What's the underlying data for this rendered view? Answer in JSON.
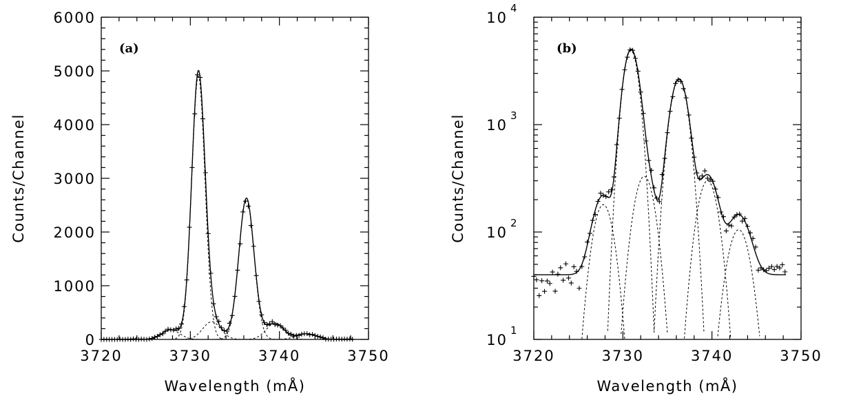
{
  "chart_data": [
    {
      "type": "line",
      "panel_label": "(a)",
      "xlabel": "Wavelength (mÅ)",
      "ylabel": "Counts/Channel",
      "xlim": [
        3720,
        3750
      ],
      "ylim": [
        0,
        6000
      ],
      "y_scale": "linear",
      "x_ticks": [
        "3720",
        "3730",
        "3740",
        "3750"
      ],
      "y_ticks": [
        "0",
        "1000",
        "2000",
        "3000",
        "4000",
        "5000",
        "6000"
      ],
      "grid": false,
      "legend": "none",
      "total_fit_components": [
        {
          "center": 3727.8,
          "amplitude": 180,
          "sigma": 1.0
        },
        {
          "center": 3730.9,
          "amplitude": 4900,
          "sigma": 0.75
        },
        {
          "center": 3732.4,
          "amplitude": 330,
          "sigma": 1.0
        },
        {
          "center": 3736.3,
          "amplitude": 2630,
          "sigma": 0.85
        },
        {
          "center": 3739.5,
          "amplitude": 300,
          "sigma": 1.0
        },
        {
          "center": 3743.0,
          "amplitude": 105,
          "sigma": 1.1
        }
      ],
      "background": 40,
      "dashed_components": [
        {
          "center": 3727.8,
          "amplitude": 180,
          "sigma": 1.0
        },
        {
          "center": 3730.9,
          "amplitude": 4900,
          "sigma": 0.75
        },
        {
          "center": 3732.4,
          "amplitude": 330,
          "sigma": 1.0
        },
        {
          "center": 3736.3,
          "amplitude": 2630,
          "sigma": 0.85
        },
        {
          "center": 3739.5,
          "amplitude": 300,
          "sigma": 1.0
        },
        {
          "center": 3743.0,
          "amplitude": 105,
          "sigma": 1.1
        }
      ],
      "data_points_x_range": [
        3720,
        3748.3
      ],
      "data_points_step": 0.3
    },
    {
      "type": "line",
      "panel_label": "(b)",
      "xlabel": "Wavelength (mÅ)",
      "ylabel": "Counts/Channel",
      "xlim": [
        3720,
        3750
      ],
      "ylim": [
        10,
        10000
      ],
      "y_scale": "log",
      "x_ticks": [
        "3720",
        "3730",
        "3740",
        "3750"
      ],
      "y_ticks": [
        {
          "base": "10",
          "exp": "1"
        },
        {
          "base": "10",
          "exp": "2"
        },
        {
          "base": "10",
          "exp": "3"
        },
        {
          "base": "10",
          "exp": "4"
        }
      ],
      "grid": false,
      "legend": "none",
      "total_fit_components": [
        {
          "center": 3727.8,
          "amplitude": 180,
          "sigma": 1.0
        },
        {
          "center": 3730.9,
          "amplitude": 4900,
          "sigma": 0.75
        },
        {
          "center": 3732.4,
          "amplitude": 330,
          "sigma": 1.0
        },
        {
          "center": 3736.3,
          "amplitude": 2630,
          "sigma": 0.85
        },
        {
          "center": 3739.5,
          "amplitude": 300,
          "sigma": 1.0
        },
        {
          "center": 3743.0,
          "amplitude": 105,
          "sigma": 1.1
        }
      ],
      "background": 40,
      "dashed_components": [
        {
          "center": 3727.8,
          "amplitude": 180,
          "sigma": 1.0
        },
        {
          "center": 3730.9,
          "amplitude": 4900,
          "sigma": 0.75
        },
        {
          "center": 3732.4,
          "amplitude": 330,
          "sigma": 1.0
        },
        {
          "center": 3736.3,
          "amplitude": 2630,
          "sigma": 0.85
        },
        {
          "center": 3739.5,
          "amplitude": 300,
          "sigma": 1.0
        },
        {
          "center": 3743.0,
          "amplitude": 105,
          "sigma": 1.1
        }
      ],
      "data_points_x_range": [
        3720,
        3748.3
      ],
      "data_points_step": 0.3
    }
  ]
}
